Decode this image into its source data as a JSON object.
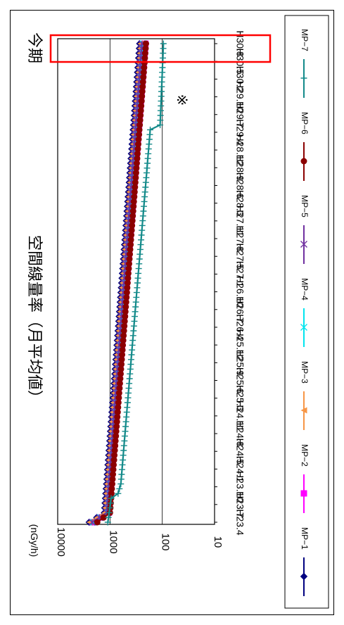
{
  "chart_data": {
    "type": "line",
    "title": "空間線量率（月平均値）",
    "ylabel": "(nGy/h)",
    "y_scale": "log",
    "ylim": [
      10,
      10000
    ],
    "y_ticks": [
      "10",
      "100",
      "1000",
      "10000"
    ],
    "x_tick_labels": [
      "H23.4",
      "H23.7",
      "H23.10",
      "H24.1",
      "H24.5",
      "H24.8",
      "H24.11",
      "H25.3",
      "H25.6",
      "H25.9",
      "H25.12",
      "H26.4",
      "H26.7",
      "H26.10",
      "H27.1",
      "H27.5",
      "H27.8",
      "H27.11",
      "H28.3",
      "H28.6",
      "H28.9",
      "H28.12",
      "H29.4",
      "H29.7",
      "H29.10",
      "H30.2",
      "H30.5",
      "H30.8"
    ],
    "latest_period_label": "今期",
    "note_mark": "※",
    "legend_position": "bottom",
    "series": [
      {
        "name": "MP−1",
        "color": "#000080",
        "marker": "diamond",
        "anchors": [
          [
            0,
            2500
          ],
          [
            2,
            1280
          ],
          [
            100,
            270
          ]
        ]
      },
      {
        "name": "MP−2",
        "color": "#ff00ff",
        "marker": "square",
        "anchors": [
          [
            0,
            2000
          ],
          [
            2,
            1050
          ],
          [
            100,
            210
          ]
        ]
      },
      {
        "name": "MP−3",
        "color": "#f79646",
        "marker": "triangle",
        "anchors": [
          [
            0,
            2450
          ],
          [
            2,
            1250
          ],
          [
            100,
            260
          ]
        ]
      },
      {
        "name": "MP−4",
        "color": "#00e5ee",
        "marker": "x",
        "anchors": [
          [
            0,
            2100
          ],
          [
            2,
            1100
          ],
          [
            100,
            235
          ]
        ]
      },
      {
        "name": "MP−5",
        "color": "#7030a0",
        "marker": "star",
        "anchors": [
          [
            0,
            2200
          ],
          [
            2,
            1150
          ],
          [
            100,
            245
          ]
        ]
      },
      {
        "name": "MP−6",
        "color": "#8b0000",
        "marker": "circle",
        "anchors": [
          [
            0,
            1750
          ],
          [
            2,
            1000
          ],
          [
            100,
            205
          ]
        ]
      },
      {
        "name": "MP−7",
        "color": "#138a8a",
        "marker": "plus",
        "anchors": [
          [
            0,
            1100
          ],
          [
            5,
            950
          ],
          [
            6,
            700
          ],
          [
            8,
            620
          ],
          [
            82,
            170
          ],
          [
            83,
            110
          ],
          [
            100,
            95
          ]
        ]
      }
    ]
  }
}
